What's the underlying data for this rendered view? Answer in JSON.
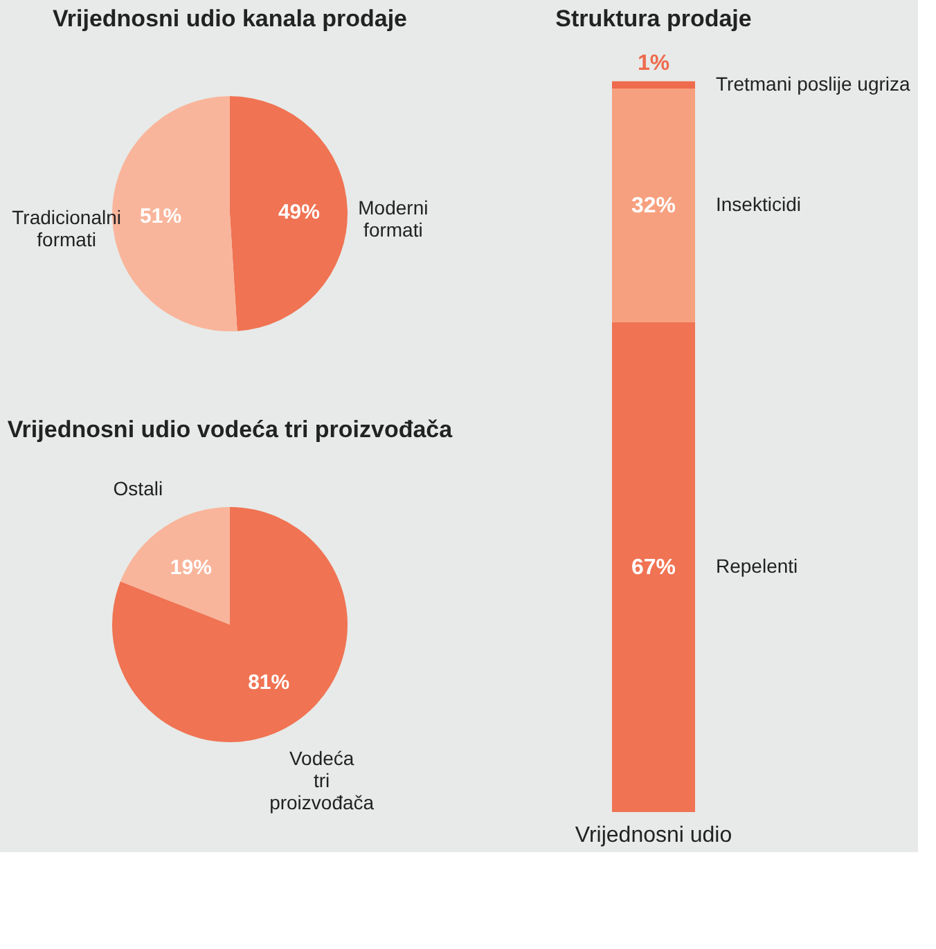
{
  "chart_data": [
    {
      "type": "pie",
      "title": "Vrijednosni udio kanala prodaje",
      "categories": [
        "Moderni formati",
        "Tradicionalni formati"
      ],
      "values": [
        49,
        51
      ],
      "colors": [
        "#f07353",
        "#f9b59b"
      ],
      "value_labels": [
        "49%",
        "51%"
      ]
    },
    {
      "type": "pie",
      "title": "Vrijednosni udio vodeća tri proizvođača",
      "categories": [
        "Vodeća tri proizvođača",
        "Ostali"
      ],
      "values": [
        81,
        19
      ],
      "colors": [
        "#f07353",
        "#f9b59b"
      ],
      "value_labels": [
        "81%",
        "19%"
      ]
    },
    {
      "type": "bar",
      "title": "Struktura prodaje",
      "stacked": true,
      "categories": [
        "Vrijednosni udio"
      ],
      "series": [
        {
          "name": "Repelenti",
          "color": "#f07353",
          "values": [
            67
          ],
          "value_labels": [
            "67%"
          ]
        },
        {
          "name": "Insekticidi",
          "color": "#f7a07f",
          "values": [
            32
          ],
          "value_labels": [
            "32%"
          ]
        },
        {
          "name": "Tretmani poslije ugriza",
          "color": "#ee6b4d",
          "values": [
            1
          ],
          "value_labels": [
            "1%"
          ]
        }
      ]
    }
  ]
}
